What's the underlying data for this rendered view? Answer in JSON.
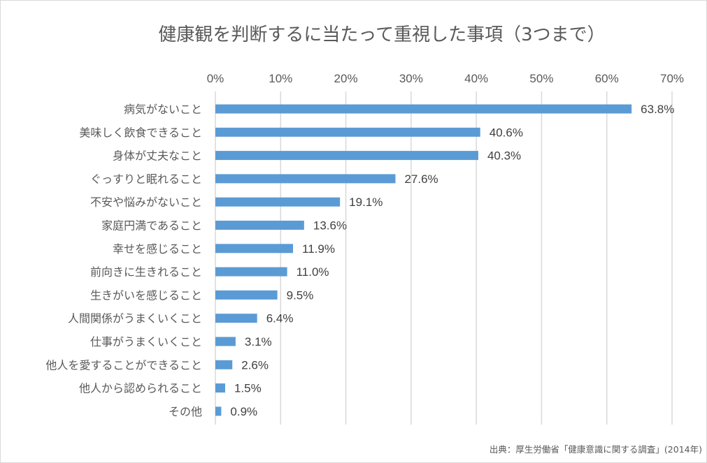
{
  "chart_data": {
    "type": "bar",
    "orientation": "horizontal",
    "title": "健康観を判断するに当たって重視した事項（3つまで）",
    "categories": [
      "病気がないこと",
      "美味しく飲食できること",
      "身体が丈夫なこと",
      "ぐっすりと眠れること",
      "不安や悩みがないこと",
      "家庭円満であること",
      "幸せを感じること",
      "前向きに生きれること",
      "生きがいを感じること",
      "人間関係がうまくいくこと",
      "仕事がうまくいくこと",
      "他人を愛することができること",
      "他人から認められること",
      "その他"
    ],
    "values": [
      63.8,
      40.6,
      40.3,
      27.6,
      19.1,
      13.6,
      11.9,
      11.0,
      9.5,
      6.4,
      3.1,
      2.6,
      1.5,
      0.9
    ],
    "value_labels": [
      "63.8%",
      "40.6%",
      "40.3%",
      "27.6%",
      "19.1%",
      "13.6%",
      "11.9%",
      "11.0%",
      "9.5%",
      "6.4%",
      "3.1%",
      "2.6%",
      "1.5%",
      "0.9%"
    ],
    "x_ticks": [
      0,
      10,
      20,
      30,
      40,
      50,
      60,
      70
    ],
    "x_tick_labels": [
      "0%",
      "10%",
      "20%",
      "30%",
      "40%",
      "50%",
      "60%",
      "70%"
    ],
    "xlim": [
      0,
      70
    ],
    "x_axis_position": "top",
    "grid": true,
    "bar_color": "#5b9bd5",
    "xlabel": "",
    "ylabel": ""
  },
  "source": "出典：厚生労働省「健康意識に関する調査」(2014年)"
}
